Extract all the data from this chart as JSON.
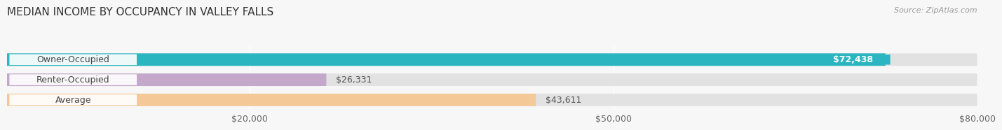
{
  "title": "MEDIAN INCOME BY OCCUPANCY IN VALLEY FALLS",
  "source": "Source: ZipAtlas.com",
  "categories": [
    "Owner-Occupied",
    "Renter-Occupied",
    "Average"
  ],
  "values": [
    72438,
    26331,
    43611
  ],
  "bar_colors": [
    "#2ab5c0",
    "#c4a8cc",
    "#f5c897"
  ],
  "value_labels": [
    "$72,438",
    "$26,331",
    "$43,611"
  ],
  "xlim": [
    0,
    80000
  ],
  "xticks": [
    20000,
    50000,
    80000
  ],
  "xtick_labels": [
    "$20,000",
    "$50,000",
    "$80,000"
  ],
  "background_color": "#f7f7f7",
  "bar_background_color": "#e2e2e2",
  "title_fontsize": 11,
  "source_fontsize": 8,
  "bar_label_fontsize": 9,
  "value_label_fontsize": 9,
  "tick_fontsize": 9,
  "bar_height": 0.62,
  "bar_gap": 0.38
}
